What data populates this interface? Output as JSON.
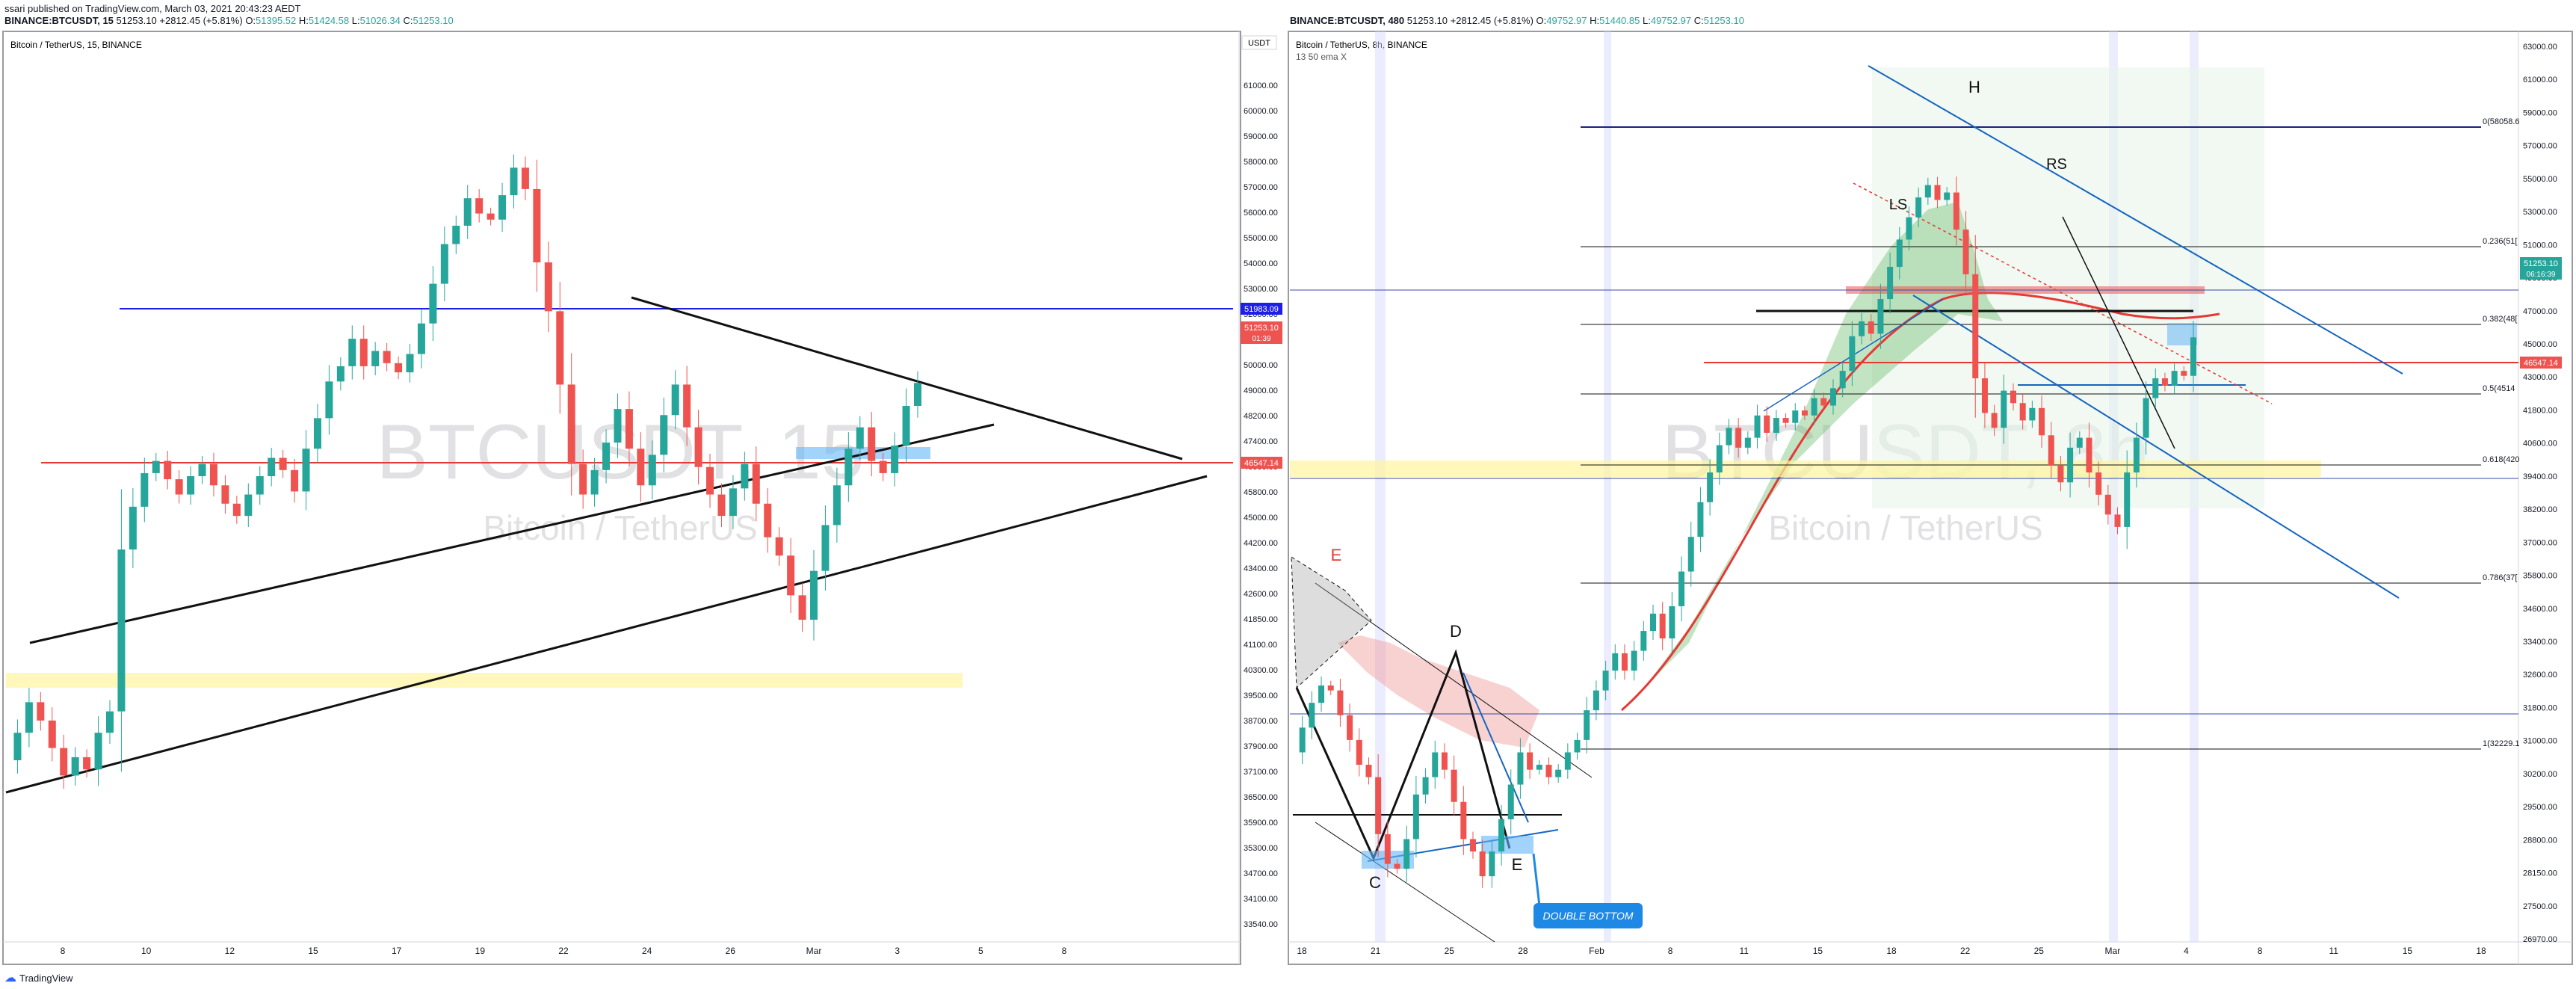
{
  "publisher": "ssari published on TradingView.com, March 03, 2021 20:43:23 AEDT",
  "footer_brand": "TradingView",
  "accent_blue": "#1e88e5",
  "up_color": "#26a69a",
  "down_color": "#ef5350",
  "chart_data": [
    {
      "type": "candlestick",
      "symbol": "BINANCE:BTCUSDT, 15",
      "ohlc_summary": {
        "last": "51253.10",
        "change": "+2812.45 (+5.81%)",
        "O": "51395.52",
        "H": "51424.58",
        "L": "51026.34",
        "C": "51253.10"
      },
      "title": "Bitcoin / TetherUS, 15, BINANCE",
      "watermark": "BTCUSDT, 15",
      "watermark_sub": "Bitcoin / TetherUS",
      "currency": "USDT",
      "y_ticks": [
        "61000.00",
        "60000.00",
        "59000.00",
        "58000.00",
        "57000.00",
        "56000.00",
        "55000.00",
        "54000.00",
        "53000.00",
        "52000.00",
        "51000.00",
        "50000.00",
        "49000.00",
        "48200.00",
        "47400.00",
        "46600.00",
        "45800.00",
        "45000.00",
        "44200.00",
        "43400.00",
        "42600.00",
        "41850.00",
        "41100.00",
        "40300.00",
        "39500.00",
        "38700.00",
        "37900.00",
        "37100.00",
        "36500.00",
        "35900.00",
        "35300.00",
        "34700.00",
        "34100.00",
        "33540.00"
      ],
      "x_ticks": [
        "8",
        "10",
        "12",
        "15",
        "17",
        "19",
        "22",
        "24",
        "26",
        "Mar",
        "3",
        "5",
        "8"
      ],
      "price_labels": [
        {
          "text": "51983.09",
          "color": "#1e1ee8"
        },
        {
          "text": "51253.10",
          "sub": "01:39",
          "color": "#ef5350"
        },
        {
          "text": "46547.14",
          "color": "#ef5350"
        }
      ],
      "series": [
        {
          "name": "",
          "close": [
            38900,
            39800,
            40800,
            40200,
            39300,
            38400,
            39000,
            38600,
            39800,
            40500,
            45800,
            47200,
            48300,
            48700,
            48100,
            47600,
            48200,
            48600,
            47900,
            47300,
            46900,
            47600,
            48200,
            48800,
            48400,
            47700,
            49100,
            50100,
            51300,
            51800,
            52700,
            51800,
            52300,
            51900,
            51600,
            52200,
            53200,
            54500,
            55800,
            56400,
            57300,
            56800,
            56600,
            57400,
            58300,
            57600,
            55200,
            53600,
            51200,
            48600,
            47600,
            48400,
            49300,
            50400,
            49100,
            47900,
            48900,
            50200,
            51200,
            49800,
            48500,
            47600,
            46900,
            47800,
            48600,
            47300,
            46200,
            45600,
            44300,
            43500,
            45100,
            46600,
            47900,
            49100,
            49800,
            48700,
            48300,
            49200,
            50500,
            51253
          ]
        }
      ]
    },
    {
      "type": "candlestick",
      "symbol": "BINANCE:BTCUSDT, 480",
      "ohlc_summary": {
        "last": "51253.10",
        "change": "+2812.45 (+5.81%)",
        "O": "49752.97",
        "H": "51440.85",
        "L": "49752.97",
        "C": "51253.10"
      },
      "title": "Bitcoin / TetherUS, 8h, BINANCE",
      "indicator": "13 50 ema X",
      "watermark": "BTCUSDT, 8h",
      "watermark_sub": "Bitcoin / TetherUS",
      "y_ticks": [
        "63000.00",
        "61000.00",
        "59000.00",
        "57000.00",
        "55000.00",
        "53000.00",
        "51000.00",
        "49000.00",
        "47000.00",
        "45000.00",
        "43000.00",
        "41800.00",
        "40600.00",
        "39400.00",
        "38200.00",
        "37000.00",
        "35800.00",
        "34600.00",
        "33400.00",
        "32600.00",
        "31800.00",
        "31000.00",
        "30200.00",
        "29500.00",
        "28800.00",
        "28150.00",
        "27500.00",
        "26970.00"
      ],
      "x_ticks": [
        "18",
        "21",
        "25",
        "28",
        "Feb",
        "8",
        "11",
        "15",
        "18",
        "22",
        "25",
        "Mar",
        "4",
        "8",
        "11",
        "15",
        "18"
      ],
      "fib_labels": [
        "0(58058.6",
        "0.236(51[",
        "0.382(48[",
        "0.5(4514",
        "0.618(420",
        "0.786(37[",
        "1(32229.1"
      ],
      "price_labels": [
        {
          "text": "51253.10",
          "sub": "06:16:39",
          "color": "#26a69a"
        },
        {
          "text": "46547.14",
          "color": "#ef5350"
        }
      ],
      "annotations": [
        "E",
        "D",
        "C",
        "E",
        "H",
        "LS",
        "RS",
        "DOUBLE BOTTOM"
      ],
      "series": [
        {
          "name": "",
          "close": [
            34500,
            35500,
            36500,
            37200,
            37000,
            36000,
            35000,
            34000,
            33500,
            31200,
            30000,
            29800,
            31000,
            32800,
            33500,
            34500,
            33800,
            32500,
            31000,
            30500,
            29500,
            30500,
            31800,
            33200,
            34500,
            33800,
            34000,
            33500,
            33800,
            34500,
            35000,
            36200,
            37000,
            37800,
            38500,
            37800,
            38600,
            39400,
            40100,
            39100,
            40400,
            41800,
            43200,
            44600,
            45800,
            46900,
            47600,
            46800,
            47200,
            48100,
            47400,
            48000,
            47800,
            48300,
            48100,
            48800,
            48500,
            49200,
            49900,
            51300,
            51900,
            51400,
            52800,
            54100,
            55200,
            56100,
            56900,
            57400,
            56800,
            57100,
            55600,
            53800,
            49600,
            48200,
            47600,
            49100,
            48600,
            47900,
            48400,
            47300,
            46100,
            45400,
            46800,
            47200,
            45800,
            44900,
            44100,
            43600,
            45800,
            47200,
            48800,
            49600,
            49300,
            49900,
            49700,
            51253
          ]
        }
      ]
    }
  ]
}
